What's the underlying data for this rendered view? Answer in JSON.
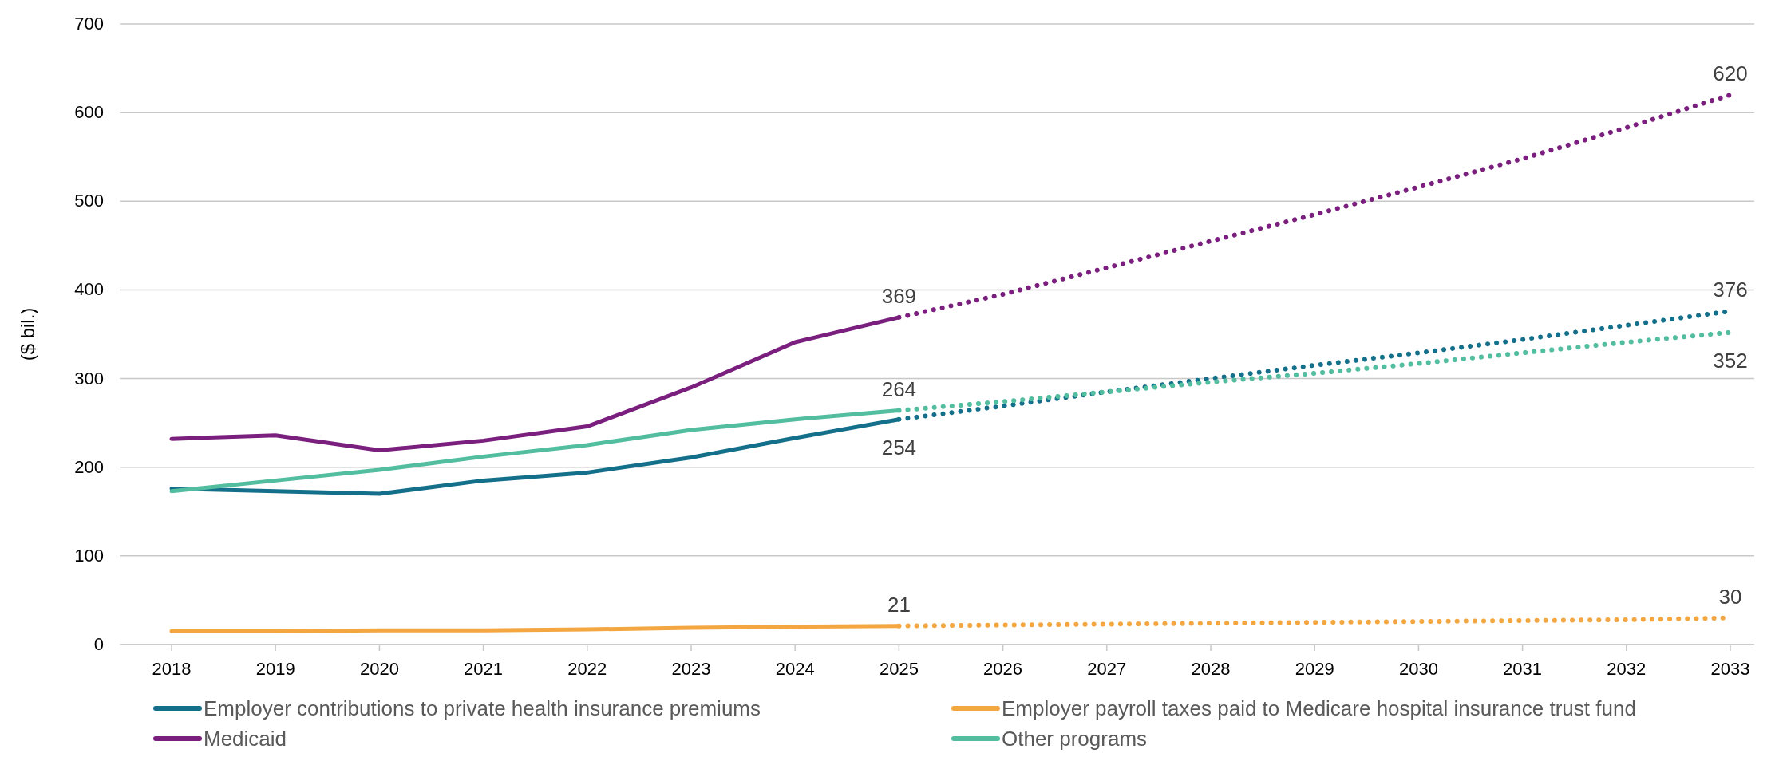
{
  "chart_data": {
    "type": "line",
    "ylabel": "($ bil.)",
    "categories": [
      "2018",
      "2019",
      "2020",
      "2021",
      "2022",
      "2023",
      "2024",
      "2025",
      "2026",
      "2027",
      "2028",
      "2029",
      "2030",
      "2031",
      "2032",
      "2033"
    ],
    "ylim": [
      0,
      700
    ],
    "yticks": [
      0,
      100,
      200,
      300,
      400,
      500,
      600,
      700
    ],
    "grid": "y",
    "legend": "bottom",
    "line_style": "solid",
    "marker": "none",
    "series": [
      {
        "name": "Employer contributions to private health insurance premiums",
        "color": "#136f8a",
        "values": [
          176,
          173,
          170,
          185,
          194,
          211,
          233,
          254,
          null,
          null,
          null,
          null,
          null,
          null,
          null,
          null
        ],
        "value_labels": [
          null,
          null,
          null,
          null,
          null,
          null,
          null,
          "254",
          null,
          null,
          null,
          null,
          null,
          null,
          null,
          null
        ]
      },
      {
        "name": "Employer payroll taxes paid to Medicare hospital insurance trust fund",
        "color": "#f4a641",
        "values": [
          15,
          15,
          16,
          16,
          17,
          19,
          20,
          21,
          null,
          null,
          null,
          null,
          null,
          null,
          null,
          null
        ],
        "value_labels": [
          null,
          null,
          null,
          null,
          null,
          null,
          null,
          "21",
          null,
          null,
          null,
          null,
          null,
          null,
          null,
          null
        ]
      },
      {
        "name": "Medicaid",
        "color": "#7a1f7e",
        "values": [
          232,
          236,
          219,
          230,
          246,
          290,
          341,
          369,
          null,
          null,
          null,
          null,
          null,
          null,
          null,
          null
        ],
        "value_labels": [
          null,
          null,
          null,
          null,
          null,
          null,
          null,
          "369",
          null,
          null,
          null,
          null,
          null,
          null,
          null,
          null
        ]
      },
      {
        "name": "Other programs",
        "color": "#52bd9f",
        "values": [
          173,
          185,
          197,
          212,
          225,
          242,
          254,
          264,
          null,
          null,
          null,
          null,
          null,
          null,
          null,
          null
        ],
        "value_labels": [
          null,
          null,
          null,
          null,
          null,
          null,
          null,
          "264",
          null,
          null,
          null,
          null,
          null,
          null,
          null,
          null
        ]
      },
      {
        "color": "#136f8a",
        "line_style": "dotted",
        "values": [
          null,
          null,
          null,
          null,
          null,
          null,
          null,
          254,
          269,
          285,
          300,
          315,
          329,
          344,
          360,
          376
        ],
        "value_labels": [
          null,
          null,
          null,
          null,
          null,
          null,
          null,
          null,
          null,
          null,
          null,
          null,
          null,
          null,
          null,
          "376"
        ]
      },
      {
        "color": "#f4a641",
        "line_style": "dotted",
        "values": [
          null,
          null,
          null,
          null,
          null,
          null,
          null,
          21,
          22,
          23,
          24,
          25,
          26,
          27,
          28,
          30
        ],
        "value_labels": [
          null,
          null,
          null,
          null,
          null,
          null,
          null,
          null,
          null,
          null,
          null,
          null,
          null,
          null,
          null,
          "30"
        ]
      },
      {
        "color": "#7a1f7e",
        "line_style": "dotted",
        "values": [
          null,
          null,
          null,
          null,
          null,
          null,
          null,
          369,
          395,
          425,
          455,
          485,
          516,
          548,
          583,
          620
        ],
        "value_labels": [
          null,
          null,
          null,
          null,
          null,
          null,
          null,
          null,
          null,
          null,
          null,
          null,
          null,
          null,
          null,
          "620"
        ]
      },
      {
        "color": "#52bd9f",
        "line_style": "dotted",
        "values": [
          null,
          null,
          null,
          null,
          null,
          null,
          null,
          264,
          274,
          285,
          296,
          306,
          317,
          329,
          341,
          352
        ],
        "value_labels": [
          null,
          null,
          null,
          null,
          null,
          null,
          null,
          null,
          null,
          null,
          null,
          null,
          null,
          null,
          null,
          "352"
        ]
      }
    ]
  }
}
